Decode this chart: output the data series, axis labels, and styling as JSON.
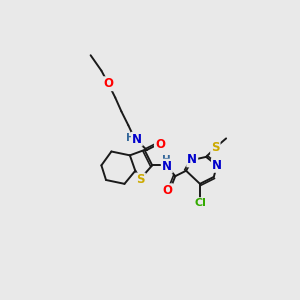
{
  "bg_color": "#e9e9e9",
  "bond_color": "#1a1a1a",
  "bond_width": 1.4,
  "atom_colors": {
    "O": "#ff0000",
    "N": "#0000cc",
    "S": "#ccaa00",
    "Cl": "#33aa00",
    "H": "#336699",
    "C": "#1a1a1a"
  },
  "font_size_atom": 8.5,
  "font_size_small": 7.5,
  "font_size_cl": 8.0
}
